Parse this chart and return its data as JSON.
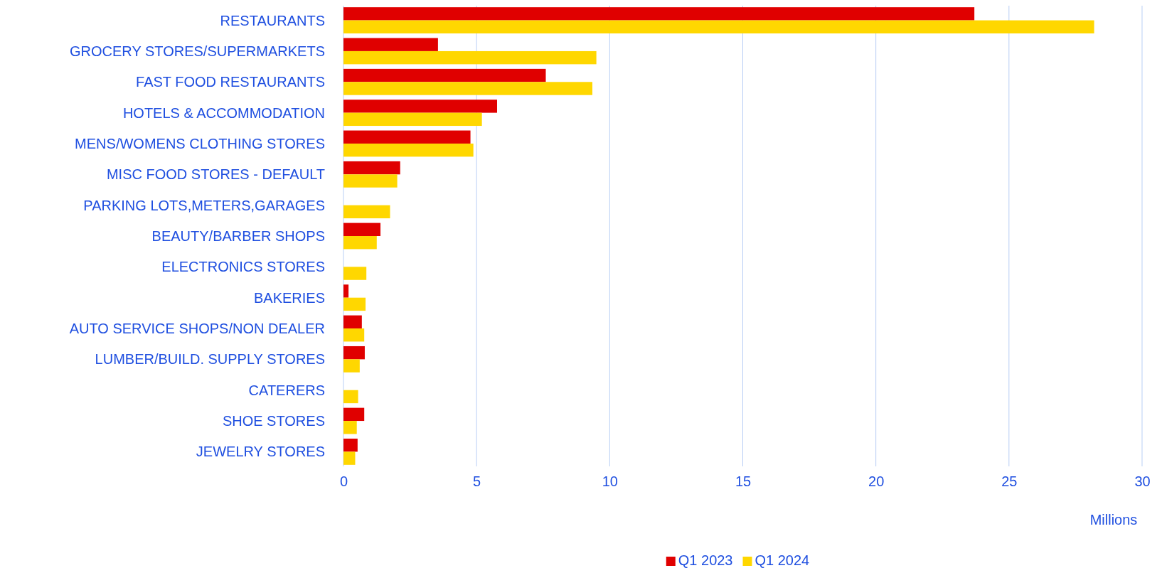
{
  "chart_data": {
    "type": "bar",
    "orientation": "horizontal",
    "xlabel": "Millions",
    "categories": [
      "RESTAURANTS",
      "GROCERY STORES/SUPERMARKETS",
      "FAST FOOD RESTAURANTS",
      "HOTELS & ACCOMMODATION",
      "MENS/WOMENS CLOTHING STORES",
      "MISC FOOD STORES - DEFAULT",
      "PARKING LOTS,METERS,GARAGES",
      "BEAUTY/BARBER SHOPS",
      "ELECTRONICS STORES",
      "BAKERIES",
      "AUTO SERVICE SHOPS/NON DEALER",
      "LUMBER/BUILD. SUPPLY STORES",
      "CATERERS",
      "SHOE STORES",
      "JEWELRY STORES"
    ],
    "series": [
      {
        "name": "Q1 2023",
        "color": "#e00000",
        "values": [
          23.7,
          3.55,
          7.6,
          5.77,
          4.77,
          2.13,
          null,
          1.39,
          null,
          0.19,
          0.69,
          0.8,
          null,
          0.78,
          0.53
        ]
      },
      {
        "name": "Q1 2024",
        "color": "#ffd700",
        "values": [
          28.2,
          9.5,
          9.35,
          5.2,
          4.88,
          2.02,
          1.75,
          1.25,
          0.86,
          0.83,
          0.78,
          0.61,
          0.55,
          0.5,
          0.44
        ]
      }
    ],
    "xlim": [
      0,
      30
    ],
    "xticks": [
      0,
      5,
      10,
      15,
      20,
      25,
      30
    ],
    "grid": "x",
    "legend": "bottom"
  }
}
